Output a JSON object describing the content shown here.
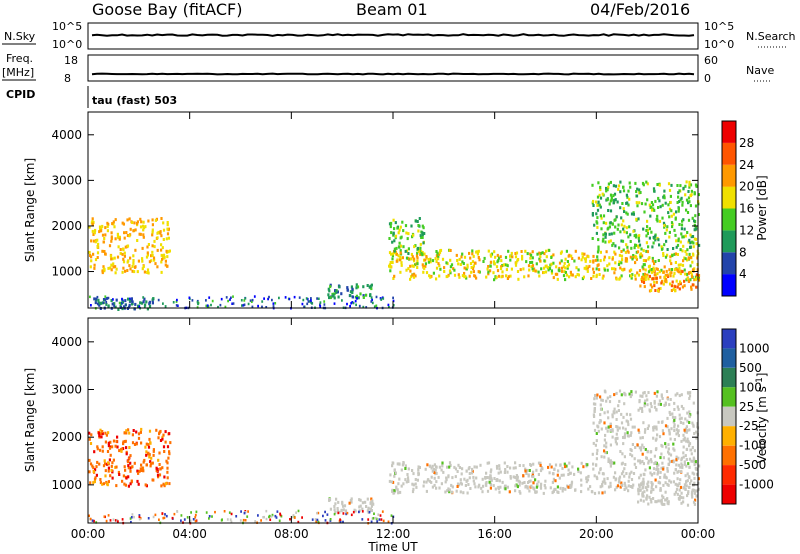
{
  "header": {
    "station": "Goose Bay (fitACF)",
    "beam": "Beam 01",
    "date": "04/Feb/2016"
  },
  "strip": {
    "nsky_label": "N.Sky",
    "nsky_ticks": [
      "10^5",
      "10^0"
    ],
    "nsearch_label": "N.Search",
    "nsearch_ticks": [
      "10^5",
      "10^0"
    ],
    "freq_label": "Freq.",
    "freq_unit": "[MHz]",
    "freq_ticks": [
      "18",
      "8"
    ],
    "nave_label": "Nave",
    "nave_ticks": [
      "60",
      "0"
    ],
    "cpid_label": "CPID",
    "cpid_value": "tau (fast) 503"
  },
  "colors": {
    "power_scale": [
      "#0000ff",
      "#2244aa",
      "#1f9a5a",
      "#44cc22",
      "#f0e000",
      "#ff9900",
      "#ff5500",
      "#ee0000"
    ],
    "velocity_scale": [
      "#2b3fbf",
      "#1f5fa0",
      "#2c7f55",
      "#55c020",
      "#c8c8c0",
      "#ffb000",
      "#ff7000",
      "#ff2a00",
      "#ee0000"
    ],
    "frame": "#000000"
  },
  "chart_data": [
    {
      "type": "heatmap",
      "name": "power",
      "ylabel": "Slant Range [km]",
      "yticks": [
        "1000",
        "2000",
        "3000",
        "4000"
      ],
      "ylim": [
        200,
        4500
      ],
      "xlim": [
        "00:00",
        "24:00"
      ],
      "colorbar_label": "Power [dB]",
      "colorbar_ticks": [
        "4",
        "8",
        "12",
        "16",
        "20",
        "24",
        "28"
      ],
      "colorbar_range": [
        0,
        32
      ],
      "regions": [
        {
          "t0": 0.0,
          "t1": 3.2,
          "r0": 1000,
          "r1": 2200,
          "level": 20
        },
        {
          "t0": 0.2,
          "t1": 2.6,
          "r0": 200,
          "r1": 450,
          "level": 8
        },
        {
          "t0": 9.4,
          "t1": 11.2,
          "r0": 450,
          "r1": 750,
          "level": 10
        },
        {
          "t0": 11.8,
          "t1": 24.0,
          "r0": 850,
          "r1": 1500,
          "level": 18
        },
        {
          "t0": 11.8,
          "t1": 13.2,
          "r0": 1400,
          "r1": 2200,
          "level": 14
        },
        {
          "t0": 19.8,
          "t1": 24.0,
          "r0": 1500,
          "r1": 3000,
          "level": 14
        },
        {
          "t0": 21.6,
          "t1": 24.0,
          "r0": 600,
          "r1": 1100,
          "level": 22
        }
      ]
    },
    {
      "type": "heatmap",
      "name": "velocity",
      "ylabel": "Slant Range [km]",
      "yticks": [
        "1000",
        "2000",
        "3000",
        "4000"
      ],
      "ylim": [
        200,
        4500
      ],
      "xlim": [
        "00:00",
        "24:00"
      ],
      "xlabel": "Time UT",
      "xticks": [
        "00:00",
        "04:00",
        "08:00",
        "12:00",
        "16:00",
        "20:00",
        "00:00"
      ],
      "colorbar_label": "Velocity [m s^-1]",
      "colorbar_ticks": [
        "1000",
        "500",
        "100",
        "25",
        "-25",
        "-100",
        "-500",
        "-1000"
      ],
      "regions": [
        {
          "t0": 0.0,
          "t1": 3.2,
          "r0": 1000,
          "r1": 2200,
          "level": -100
        },
        {
          "t0": 9.4,
          "t1": 11.2,
          "r0": 450,
          "r1": 750,
          "level": 0
        },
        {
          "t0": 11.8,
          "t1": 24.0,
          "r0": 850,
          "r1": 1500,
          "level": 0
        },
        {
          "t0": 19.8,
          "t1": 24.0,
          "r0": 1500,
          "r1": 3000,
          "level": 0
        },
        {
          "t0": 21.6,
          "t1": 24.0,
          "r0": 600,
          "r1": 1100,
          "level": 0
        }
      ]
    }
  ]
}
